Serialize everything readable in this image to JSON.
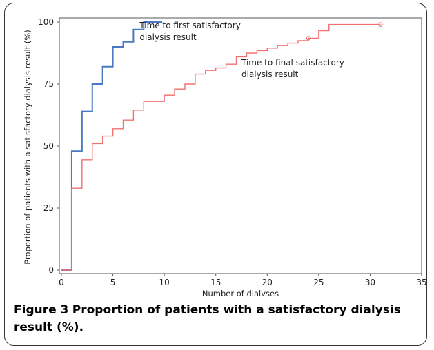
{
  "chart_data": {
    "type": "line",
    "step": true,
    "xlabel": "Number of dialyses",
    "ylabel": "Proportion of patients with a satisfactory dialysis result (%)",
    "xlim": [
      0,
      35
    ],
    "ylim": [
      0,
      100
    ],
    "x_ticks": [
      0,
      5,
      10,
      15,
      20,
      25,
      30,
      35
    ],
    "y_ticks": [
      0,
      25,
      50,
      75,
      100
    ],
    "grid": false,
    "legend": "none",
    "series": [
      {
        "name": "Time to first satisfactory dialysis result",
        "color": "#4a78c2",
        "x": [
          0,
          1,
          2,
          3,
          4,
          5,
          6,
          7,
          8,
          9.8
        ],
        "y": [
          0,
          48,
          64,
          75,
          82,
          90,
          92,
          97,
          100,
          100
        ],
        "censored_x": []
      },
      {
        "name": "Time to final satisfactory dialysis result",
        "color": "#f07070",
        "x": [
          0,
          1,
          2,
          3,
          4,
          5,
          6,
          7,
          8,
          10,
          11,
          12,
          13,
          14,
          15,
          16,
          17,
          18,
          19,
          20,
          21,
          22,
          23,
          24,
          25,
          26,
          31
        ],
        "y": [
          0,
          33,
          44.5,
          51,
          54,
          57,
          60.5,
          64.5,
          68,
          70.5,
          73,
          75,
          79,
          80.5,
          81.5,
          83,
          86,
          87.5,
          88.5,
          89.5,
          90.5,
          91.5,
          92.5,
          93.5,
          96.5,
          99,
          99
        ],
        "censored_x": [
          24,
          31
        ]
      }
    ],
    "annotations": [
      {
        "lines": [
          "Time to first satisfactory",
          "dialysis result"
        ],
        "series": 0,
        "at_x": 7.6,
        "at_y": 97.5
      },
      {
        "lines": [
          "Time to final satisfactory",
          "dialysis result"
        ],
        "series": 1,
        "at_x": 17.5,
        "at_y": 82.5
      }
    ]
  },
  "caption": {
    "label": "Figure 3",
    "text": "Proportion of patients with a satisfactory dialysis result (%)."
  }
}
